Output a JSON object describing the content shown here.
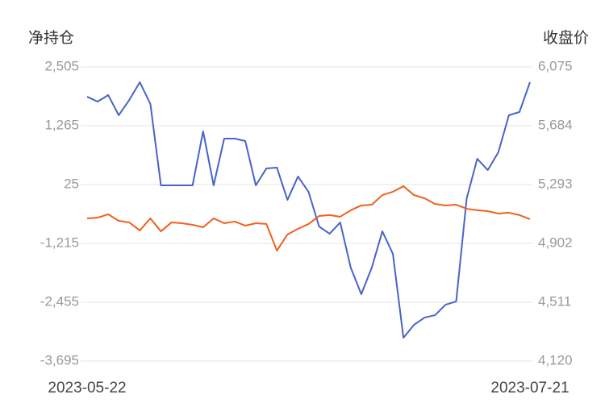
{
  "chart_data": {
    "type": "line",
    "y_label": "净持仓",
    "y2_label": "收盘价",
    "categories": [
      "2023-05-22",
      null,
      null,
      null,
      null,
      null,
      null,
      null,
      null,
      null,
      null,
      null,
      null,
      null,
      null,
      null,
      null,
      null,
      null,
      null,
      null,
      null,
      null,
      null,
      null,
      null,
      null,
      null,
      null,
      null,
      null,
      null,
      null,
      null,
      null,
      null,
      null,
      null,
      null,
      null,
      null,
      null,
      "2023-07-21"
    ],
    "series": [
      {
        "name": "净持仓",
        "color": "#4a63c8",
        "axis": "y",
        "values": [
          1876,
          1774,
          1910,
          1486,
          1808,
          2182,
          1723,
          8,
          8,
          8,
          8,
          1146,
          8,
          993,
          993,
          942,
          8,
          364,
          381,
          -299,
          194,
          -129,
          -859,
          -1012,
          -774,
          -1725,
          -2286,
          -1725,
          -961,
          -1437,
          -3204,
          -2932,
          -2779,
          -2728,
          -2507,
          -2439,
          -265,
          568,
          330,
          704,
          1486,
          1554,
          2182
        ]
      },
      {
        "name": "收盘价",
        "color": "#f0601e",
        "axis": "y2",
        "values": [
          5068,
          5073,
          5095,
          5052,
          5041,
          4988,
          5068,
          4982,
          5041,
          5036,
          5025,
          5009,
          5068,
          5036,
          5047,
          5020,
          5036,
          5031,
          4854,
          4961,
          4999,
          5031,
          5084,
          5090,
          5079,
          5122,
          5154,
          5159,
          5223,
          5245,
          5282,
          5223,
          5202,
          5164,
          5154,
          5159,
          5132,
          5122,
          5116,
          5100,
          5106,
          5090,
          5063
        ]
      }
    ],
    "ylim": [
      -3695,
      2505
    ],
    "yticks": [
      {
        "value": -3695,
        "label": "-3,695"
      },
      {
        "value": -2455,
        "label": "-2,455"
      },
      {
        "value": -1215,
        "label": "-1,215"
      },
      25,
      {
        "value": 1265,
        "label": "1,265"
      },
      {
        "value": 2505,
        "label": "2,505"
      }
    ],
    "y2lim": [
      4120,
      6075
    ],
    "y2ticks": [
      {
        "value": 4120,
        "label": "4,120"
      },
      {
        "value": 4511,
        "label": "4,511"
      },
      {
        "value": 4902,
        "label": "4,902"
      },
      {
        "value": 5293,
        "label": "5,293"
      },
      {
        "value": 5684,
        "label": "5,684"
      },
      {
        "value": 6075,
        "label": "6,075"
      }
    ],
    "grid": true
  }
}
